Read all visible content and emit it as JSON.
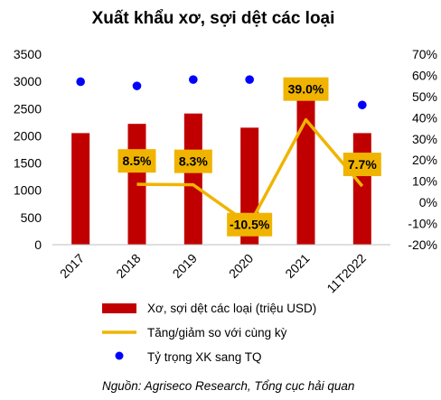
{
  "chart_data": {
    "type": "bar",
    "title": "Xuất khẩu xơ, sợi dệt các loại",
    "categories": [
      "2017",
      "2018",
      "2019",
      "2020",
      "2021",
      "11T2022"
    ],
    "series": [
      {
        "name": "Xơ, sợi dệt các loại (triệu USD)",
        "type": "bar",
        "axis": "left",
        "color": "#c00000",
        "values": [
          2050,
          2220,
          2410,
          2150,
          2990,
          2050
        ]
      },
      {
        "name": "Tăng/giảm so với cùng kỳ",
        "type": "line",
        "axis": "right",
        "color": "#f0b400",
        "values": [
          null,
          8.5,
          8.3,
          -10.5,
          39.0,
          7.7
        ],
        "labels": [
          "",
          "8.5%",
          "8.3%",
          "-10.5%",
          "39.0%",
          "7.7%"
        ]
      },
      {
        "name": "Tỷ trọng XK sang TQ",
        "type": "scatter",
        "axis": "right",
        "color": "#0000ff",
        "values": [
          57,
          55,
          58,
          58,
          null,
          46
        ]
      }
    ],
    "left_axis": {
      "min": 0,
      "max": 3500,
      "ticks": [
        "0",
        "500",
        "1000",
        "1500",
        "2000",
        "2500",
        "3000",
        "3500"
      ]
    },
    "right_axis": {
      "min": -20,
      "max": 70,
      "ticks": [
        "-20%",
        "-10%",
        "0%",
        "10%",
        "20%",
        "30%",
        "40%",
        "50%",
        "60%",
        "70%"
      ]
    },
    "grid": false,
    "legend_position": "bottom"
  },
  "source": "Nguồn: Agriseco Research, Tổng cục hải quan"
}
